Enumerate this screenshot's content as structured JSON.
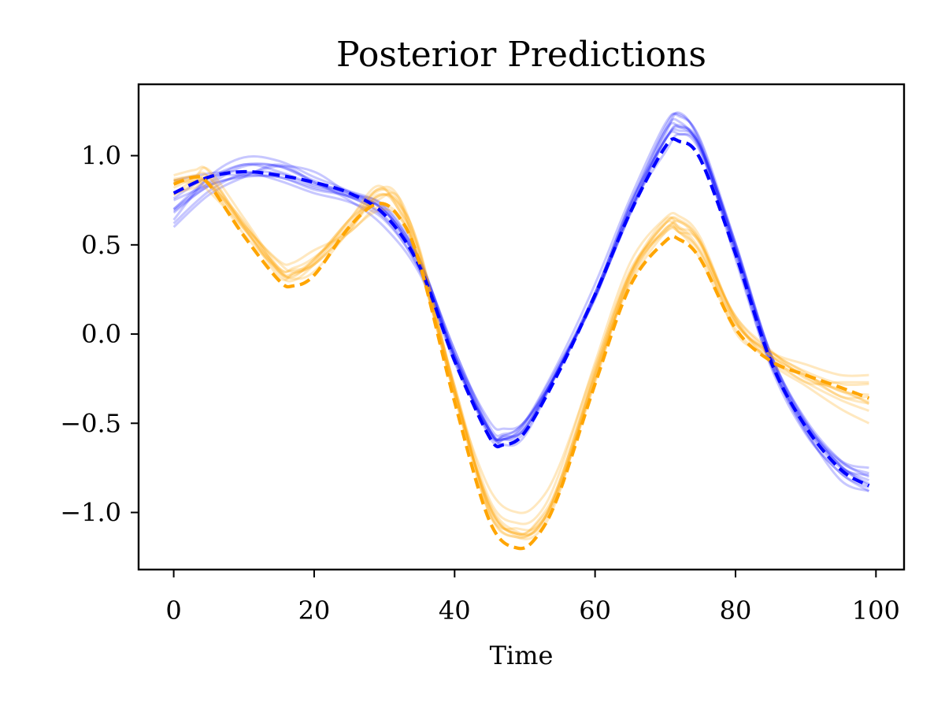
{
  "chart_data": {
    "type": "line",
    "title": "Posterior Predictions",
    "xlabel": "Time",
    "ylabel": "",
    "xlim": [
      -5,
      104
    ],
    "ylim": [
      -1.32,
      1.4
    ],
    "x_ticks": [
      0,
      20,
      40,
      60,
      80,
      100
    ],
    "x_tick_labels": [
      "0",
      "20",
      "40",
      "60",
      "80",
      "100"
    ],
    "y_ticks": [
      1.0,
      0.5,
      0.0,
      -0.5,
      -1.0
    ],
    "y_tick_labels": [
      "1.0",
      "0.5",
      "0.0",
      "−0.5",
      "−1.0"
    ],
    "grid": false,
    "legend": "none",
    "colors": {
      "blue": "#0000ff",
      "orange": "#ffa500"
    },
    "series": [
      {
        "color": "blue",
        "style": "dashed",
        "x": [
          0,
          5,
          10,
          15,
          20,
          25,
          30,
          35,
          40,
          45,
          47,
          50,
          55,
          60,
          65,
          70,
          72,
          75,
          80,
          85,
          90,
          95,
          99
        ],
        "values": [
          0.79,
          0.88,
          0.91,
          0.89,
          0.85,
          0.79,
          0.67,
          0.38,
          -0.15,
          -0.58,
          -0.62,
          -0.55,
          -0.2,
          0.22,
          0.68,
          1.05,
          1.08,
          0.98,
          0.45,
          -0.15,
          -0.52,
          -0.76,
          -0.85
        ]
      },
      {
        "color": "orange",
        "style": "dashed",
        "x": [
          0,
          3,
          5,
          10,
          15,
          17,
          20,
          25,
          29,
          32,
          35,
          40,
          45,
          49,
          52,
          55,
          60,
          65,
          70,
          72,
          75,
          80,
          85,
          90,
          95,
          99
        ],
        "values": [
          0.84,
          0.88,
          0.84,
          0.55,
          0.3,
          0.27,
          0.33,
          0.6,
          0.73,
          0.66,
          0.4,
          -0.38,
          -1.05,
          -1.2,
          -1.12,
          -0.88,
          -0.28,
          0.27,
          0.52,
          0.53,
          0.42,
          0.03,
          -0.15,
          -0.23,
          -0.3,
          -0.36
        ]
      },
      {
        "color": "blue",
        "style": "samples",
        "x": [
          0,
          5,
          10,
          15,
          20,
          25,
          30,
          35,
          40,
          45,
          47,
          50,
          55,
          60,
          65,
          70,
          72,
          75,
          80,
          85,
          90,
          95,
          99
        ],
        "samples": [
          [
            0.64,
            0.88,
            0.99,
            0.97,
            0.88,
            0.8,
            0.69,
            0.4,
            -0.09,
            -0.52,
            -0.56,
            -0.49,
            -0.14,
            0.28,
            0.76,
            1.18,
            1.22,
            1.09,
            0.51,
            -0.11,
            -0.48,
            -0.71,
            -0.8
          ],
          [
            0.86,
            0.9,
            0.91,
            0.86,
            0.79,
            0.74,
            0.64,
            0.36,
            -0.13,
            -0.58,
            -0.59,
            -0.51,
            -0.18,
            0.22,
            0.73,
            1.09,
            1.17,
            1.05,
            0.5,
            -0.13,
            -0.52,
            -0.74,
            -0.82
          ],
          [
            0.68,
            0.83,
            0.89,
            0.94,
            0.91,
            0.79,
            0.72,
            0.42,
            -0.12,
            -0.54,
            -0.59,
            -0.55,
            -0.18,
            0.2,
            0.7,
            1.02,
            1.12,
            1.02,
            0.46,
            -0.16,
            -0.54,
            -0.82,
            -0.88
          ],
          [
            0.6,
            0.78,
            0.88,
            0.95,
            0.85,
            0.75,
            0.6,
            0.34,
            -0.12,
            -0.49,
            -0.53,
            -0.49,
            -0.19,
            0.21,
            0.68,
            1.12,
            1.24,
            1.06,
            0.42,
            -0.17,
            -0.5,
            -0.71,
            -0.75
          ],
          [
            0.75,
            0.84,
            0.94,
            0.94,
            0.86,
            0.78,
            0.69,
            0.39,
            -0.15,
            -0.54,
            -0.62,
            -0.57,
            -0.18,
            0.23,
            0.69,
            1.09,
            1.12,
            1.04,
            0.44,
            -0.18,
            -0.56,
            -0.78,
            -0.88
          ],
          [
            0.69,
            0.83,
            0.88,
            0.88,
            0.81,
            0.77,
            0.66,
            0.4,
            -0.09,
            -0.54,
            -0.57,
            -0.49,
            -0.19,
            0.21,
            0.67,
            1.09,
            1.14,
            1.05,
            0.47,
            -0.14,
            -0.53,
            -0.75,
            -0.79
          ],
          [
            0.7,
            0.85,
            0.95,
            0.91,
            0.84,
            0.8,
            0.71,
            0.41,
            -0.14,
            -0.56,
            -0.59,
            -0.53,
            -0.18,
            0.21,
            0.68,
            1.14,
            1.19,
            1.03,
            0.48,
            -0.12,
            -0.51,
            -0.72,
            -0.78
          ],
          [
            0.62,
            0.8,
            0.9,
            0.9,
            0.83,
            0.79,
            0.69,
            0.42,
            -0.12,
            -0.56,
            -0.57,
            -0.53,
            -0.17,
            0.23,
            0.72,
            1.09,
            1.16,
            1.06,
            0.48,
            -0.15,
            -0.55,
            -0.78,
            -0.86
          ],
          [
            0.7,
            0.87,
            0.95,
            0.94,
            0.85,
            0.77,
            0.7,
            0.38,
            -0.12,
            -0.55,
            -0.58,
            -0.53,
            -0.19,
            0.23,
            0.73,
            1.14,
            1.16,
            1.05,
            0.51,
            -0.11,
            -0.5,
            -0.74,
            -0.84
          ],
          [
            0.76,
            0.88,
            0.89,
            0.88,
            0.82,
            0.77,
            0.65,
            0.36,
            -0.16,
            -0.54,
            -0.59,
            -0.5,
            -0.16,
            0.2,
            0.71,
            1.16,
            1.23,
            1.08,
            0.49,
            -0.11,
            -0.49,
            -0.74,
            -0.85
          ]
        ]
      },
      {
        "color": "orange",
        "style": "samples",
        "x": [
          0,
          3,
          5,
          10,
          15,
          17,
          20,
          25,
          29,
          32,
          35,
          40,
          45,
          49,
          52,
          55,
          60,
          65,
          70,
          72,
          75,
          80,
          85,
          90,
          95,
          99
        ],
        "samples": [
          [
            0.89,
            0.92,
            0.91,
            0.6,
            0.37,
            0.36,
            0.4,
            0.64,
            0.83,
            0.7,
            0.46,
            -0.31,
            -0.98,
            -1.12,
            -1.08,
            -0.83,
            -0.21,
            0.34,
            0.62,
            0.64,
            0.52,
            0.07,
            -0.1,
            -0.17,
            -0.23,
            -0.23
          ],
          [
            0.87,
            0.88,
            0.84,
            0.56,
            0.36,
            0.32,
            0.42,
            0.62,
            0.8,
            0.75,
            0.39,
            -0.34,
            -0.97,
            -1.13,
            -1.08,
            -0.82,
            -0.23,
            0.34,
            0.64,
            0.59,
            0.45,
            0.06,
            -0.12,
            -0.27,
            -0.27,
            -0.27
          ],
          [
            0.86,
            0.87,
            0.84,
            0.59,
            0.34,
            0.3,
            0.39,
            0.6,
            0.77,
            0.74,
            0.47,
            -0.32,
            -0.97,
            -1.12,
            -1.05,
            -0.85,
            -0.27,
            0.32,
            0.62,
            0.63,
            0.52,
            0.09,
            -0.15,
            -0.23,
            -0.32,
            -0.34
          ],
          [
            0.82,
            0.88,
            0.92,
            0.65,
            0.37,
            0.37,
            0.43,
            0.6,
            0.81,
            0.72,
            0.43,
            -0.35,
            -0.95,
            -1.11,
            -1.09,
            -0.85,
            -0.26,
            0.31,
            0.59,
            0.6,
            0.47,
            0.1,
            -0.09,
            -0.25,
            -0.31,
            -0.39
          ],
          [
            0.78,
            0.86,
            0.8,
            0.59,
            0.35,
            0.34,
            0.39,
            0.57,
            0.69,
            0.66,
            0.41,
            -0.34,
            -1.01,
            -1.09,
            -1.07,
            -0.84,
            -0.25,
            0.33,
            0.62,
            0.57,
            0.46,
            0.06,
            -0.1,
            -0.22,
            -0.35,
            -0.35
          ],
          [
            0.86,
            0.85,
            0.88,
            0.62,
            0.36,
            0.31,
            0.35,
            0.58,
            0.78,
            0.7,
            0.38,
            -0.29,
            -1.01,
            -1.14,
            -1.11,
            -0.88,
            -0.22,
            0.28,
            0.57,
            0.59,
            0.51,
            0.01,
            -0.12,
            -0.24,
            -0.35,
            -0.39
          ],
          [
            0.78,
            0.84,
            0.85,
            0.6,
            0.32,
            0.34,
            0.42,
            0.64,
            0.81,
            0.77,
            0.39,
            -0.31,
            -1.0,
            -1.14,
            -1.07,
            -0.87,
            -0.24,
            0.3,
            0.59,
            0.57,
            0.51,
            0.08,
            -0.12,
            -0.23,
            -0.32,
            -0.38
          ],
          [
            0.86,
            0.89,
            0.88,
            0.61,
            0.4,
            0.35,
            0.39,
            0.58,
            0.77,
            0.73,
            0.48,
            -0.31,
            -0.96,
            -1.12,
            -1.04,
            -0.82,
            -0.2,
            0.36,
            0.58,
            0.63,
            0.5,
            0.1,
            -0.1,
            -0.21,
            -0.28,
            -0.28
          ],
          [
            0.86,
            0.86,
            0.84,
            0.63,
            0.35,
            0.33,
            0.41,
            0.64,
            0.75,
            0.77,
            0.45,
            -0.29,
            -0.93,
            -1.06,
            -1.01,
            -0.77,
            -0.16,
            0.4,
            0.65,
            0.66,
            0.54,
            0.08,
            -0.16,
            -0.29,
            -0.42,
            -0.5
          ],
          [
            0.79,
            0.82,
            0.85,
            0.61,
            0.41,
            0.4,
            0.47,
            0.57,
            0.71,
            0.67,
            0.4,
            -0.33,
            -0.87,
            -1.0,
            -0.94,
            -0.73,
            -0.18,
            0.34,
            0.57,
            0.57,
            0.42,
            0.03,
            -0.15,
            -0.27,
            -0.37,
            -0.43
          ]
        ]
      }
    ]
  }
}
